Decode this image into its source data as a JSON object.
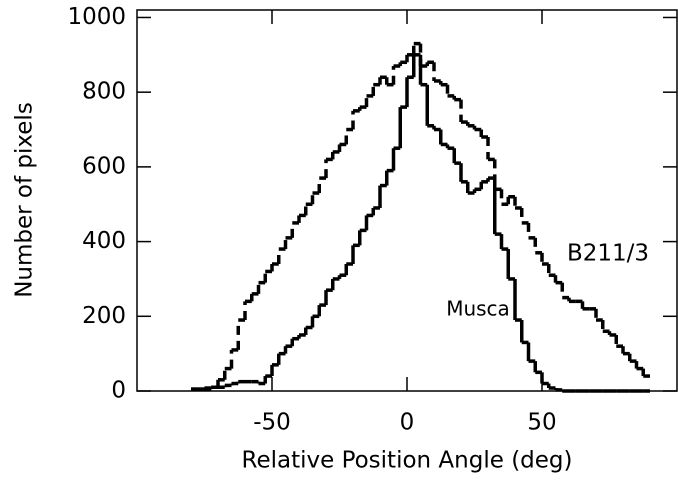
{
  "chart_data": {
    "type": "histogram",
    "xlabel": "Relative Position Angle (deg)",
    "ylabel": "Number of pixels",
    "bins": [
      -80,
      -77.5,
      -75,
      -72.5,
      -70,
      -67.5,
      -65,
      -62.5,
      -60,
      -57.5,
      -55,
      -52.5,
      -50,
      -47.5,
      -45,
      -42.5,
      -40,
      -37.5,
      -35,
      -32.5,
      -30,
      -27.5,
      -25,
      -22.5,
      -20,
      -17.5,
      -15,
      -12.5,
      -10,
      -7.5,
      -5,
      -2.5,
      0,
      2.5,
      5,
      7.5,
      10,
      12.5,
      15,
      17.5,
      20,
      22.5,
      25,
      27.5,
      30,
      32.5,
      35,
      37.5,
      40,
      42.5,
      45,
      47.5,
      50,
      52.5,
      55,
      57.5,
      60,
      62.5,
      65,
      67.5,
      70,
      72.5,
      75,
      77.5,
      80,
      82.5,
      85,
      87.5,
      90
    ],
    "series": [
      {
        "name": "Musca",
        "color": "#000000",
        "dash": "solid",
        "values": [
          5,
          5,
          8,
          10,
          10,
          15,
          20,
          25,
          25,
          25,
          20,
          40,
          70,
          100,
          120,
          140,
          150,
          170,
          200,
          230,
          270,
          300,
          310,
          340,
          390,
          430,
          470,
          490,
          550,
          590,
          650,
          760,
          840,
          900,
          820,
          710,
          700,
          660,
          650,
          610,
          560,
          530,
          540,
          560,
          570,
          420,
          380,
          300,
          190,
          130,
          80,
          50,
          20,
          8,
          3,
          0,
          0,
          0,
          0,
          0,
          0,
          0,
          0,
          0,
          0,
          0,
          0,
          0
        ]
      },
      {
        "name": "B211/3",
        "color": "#000000",
        "dash": "dashed",
        "values": [
          5,
          5,
          5,
          10,
          30,
          60,
          110,
          190,
          240,
          260,
          290,
          320,
          340,
          380,
          410,
          450,
          470,
          500,
          530,
          570,
          620,
          640,
          660,
          700,
          750,
          760,
          790,
          820,
          840,
          820,
          870,
          880,
          900,
          930,
          870,
          880,
          830,
          820,
          790,
          780,
          720,
          710,
          700,
          680,
          620,
          540,
          500,
          520,
          490,
          450,
          410,
          370,
          340,
          310,
          290,
          250,
          240,
          240,
          220,
          220,
          190,
          160,
          150,
          120,
          100,
          80,
          60,
          40
        ]
      }
    ],
    "xlim": [
      -100,
      100
    ],
    "ylim": [
      0,
      1020
    ],
    "xticks": [
      -50,
      0,
      50
    ],
    "yticks": [
      0,
      200,
      400,
      600,
      800,
      1000
    ]
  }
}
